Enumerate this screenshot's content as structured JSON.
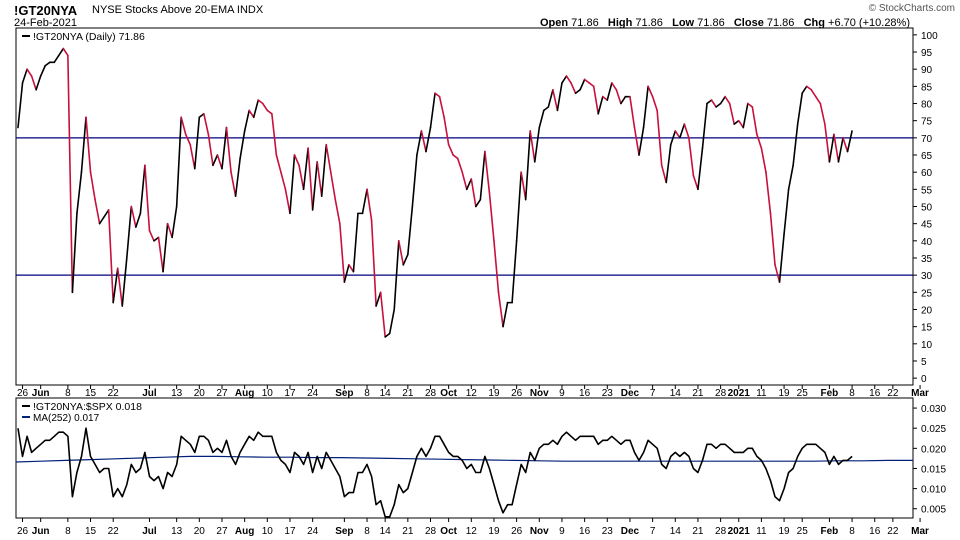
{
  "header": {
    "symbol": "!GT20NYA",
    "description": "NYSE Stocks Above 20-EMA",
    "exchange": "INDX",
    "date": "24-Feb-2021",
    "open_label": "Open",
    "open": "71.86",
    "high_label": "High",
    "high": "71.86",
    "low_label": "Low",
    "low": "71.86",
    "close_label": "Close",
    "close": "71.86",
    "chg_label": "Chg",
    "chg": "+6.70 (+10.28%)",
    "watermark": "© StockCharts.com"
  },
  "colors": {
    "up": "#000000",
    "down": "#c8103c",
    "hline": "#000080",
    "ma": "#00207a"
  },
  "chart_data": [
    {
      "type": "line",
      "legend": "!GT20NYA (Daily) 71.86",
      "ylim": [
        -2,
        102
      ],
      "yticks": [
        0,
        5,
        10,
        15,
        20,
        25,
        30,
        35,
        40,
        45,
        50,
        55,
        60,
        65,
        70,
        75,
        80,
        85,
        90,
        95,
        100
      ],
      "hlines": [
        70,
        30
      ],
      "x_ticks": [
        {
          "label": "26",
          "i": 1,
          "bold": false
        },
        {
          "label": "Jun",
          "i": 5,
          "bold": true
        },
        {
          "label": "8",
          "i": 11,
          "bold": false
        },
        {
          "label": "15",
          "i": 16,
          "bold": false
        },
        {
          "label": "22",
          "i": 21,
          "bold": false
        },
        {
          "label": "Jul",
          "i": 29,
          "bold": true
        },
        {
          "label": "13",
          "i": 35,
          "bold": false
        },
        {
          "label": "20",
          "i": 40,
          "bold": false
        },
        {
          "label": "27",
          "i": 45,
          "bold": false
        },
        {
          "label": "Aug",
          "i": 50,
          "bold": true
        },
        {
          "label": "10",
          "i": 55,
          "bold": false
        },
        {
          "label": "17",
          "i": 60,
          "bold": false
        },
        {
          "label": "24",
          "i": 65,
          "bold": false
        },
        {
          "label": "Sep",
          "i": 72,
          "bold": true
        },
        {
          "label": "8",
          "i": 77,
          "bold": false
        },
        {
          "label": "14",
          "i": 81,
          "bold": false
        },
        {
          "label": "21",
          "i": 86,
          "bold": false
        },
        {
          "label": "28",
          "i": 91,
          "bold": false
        },
        {
          "label": "Oct",
          "i": 95,
          "bold": true
        },
        {
          "label": "12",
          "i": 100,
          "bold": false
        },
        {
          "label": "19",
          "i": 105,
          "bold": false
        },
        {
          "label": "26",
          "i": 110,
          "bold": false
        },
        {
          "label": "Nov",
          "i": 115,
          "bold": true
        },
        {
          "label": "9",
          "i": 120,
          "bold": false
        },
        {
          "label": "16",
          "i": 125,
          "bold": false
        },
        {
          "label": "23",
          "i": 130,
          "bold": false
        },
        {
          "label": "Dec",
          "i": 135,
          "bold": true
        },
        {
          "label": "7",
          "i": 140,
          "bold": false
        },
        {
          "label": "14",
          "i": 145,
          "bold": false
        },
        {
          "label": "21",
          "i": 150,
          "bold": false
        },
        {
          "label": "28",
          "i": 155,
          "bold": false
        },
        {
          "label": "2021",
          "i": 159,
          "bold": true
        },
        {
          "label": "11",
          "i": 164,
          "bold": false
        },
        {
          "label": "19",
          "i": 169,
          "bold": false
        },
        {
          "label": "25",
          "i": 173,
          "bold": false
        },
        {
          "label": "Feb",
          "i": 179,
          "bold": true
        },
        {
          "label": "8",
          "i": 184,
          "bold": false
        },
        {
          "label": "16",
          "i": 189,
          "bold": false
        },
        {
          "label": "22",
          "i": 193,
          "bold": false
        },
        {
          "label": "Mar",
          "i": 199,
          "bold": true
        }
      ],
      "x_count": 198,
      "values": [
        73,
        86,
        90,
        88,
        84,
        88,
        91,
        92,
        92,
        94,
        96,
        94,
        25,
        48,
        60,
        76,
        60,
        52,
        45,
        47,
        49,
        22,
        32,
        21,
        35,
        50,
        44,
        48,
        62,
        43,
        40,
        41,
        31,
        45,
        41,
        50,
        76,
        71,
        68,
        61,
        76,
        77,
        71,
        62,
        65,
        61,
        73,
        60,
        53,
        64,
        72,
        78,
        76,
        81,
        80,
        78,
        77,
        65,
        60,
        55,
        48,
        65,
        62,
        55,
        67,
        49,
        63,
        53,
        68,
        60,
        52,
        45,
        28,
        33,
        31,
        48,
        48,
        55,
        46,
        21,
        25,
        12,
        13,
        20,
        40,
        33,
        36,
        50,
        65,
        72,
        66,
        73,
        83,
        82,
        76,
        68,
        65,
        64,
        60,
        55,
        58,
        50,
        52,
        66,
        54,
        40,
        25,
        15,
        22,
        22,
        40,
        60,
        52,
        72,
        63,
        73,
        78,
        79,
        84,
        78,
        86,
        88,
        86,
        83,
        84,
        87,
        86,
        85,
        77,
        82,
        81,
        86,
        84,
        80,
        82,
        82,
        73,
        65,
        73,
        85,
        82,
        78,
        62,
        57,
        68,
        72,
        70,
        74,
        70,
        59,
        55,
        67,
        80,
        81,
        79,
        80,
        82,
        80,
        74,
        75,
        73,
        80,
        79,
        71,
        67,
        60,
        48,
        33,
        28,
        42,
        55,
        62,
        74,
        83,
        85,
        84,
        82,
        80,
        74,
        63,
        71,
        63,
        70,
        66,
        72
      ],
      "colors_per_segment": "black when rising, crimson when falling"
    },
    {
      "type": "line",
      "legend": "!GT20NYA:$SPX 0.018",
      "legend2": "MA(252) 0.017",
      "ylim": [
        0.0027,
        0.0325
      ],
      "yticks": [
        "0.005",
        "0.010",
        "0.015",
        "0.020",
        "0.025",
        "0.030"
      ],
      "ratio": [
        0.025,
        0.018,
        0.023,
        0.019,
        0.02,
        0.021,
        0.022,
        0.022,
        0.023,
        0.024,
        0.024,
        0.023,
        0.008,
        0.014,
        0.018,
        0.025,
        0.018,
        0.016,
        0.014,
        0.015,
        0.015,
        0.008,
        0.01,
        0.008,
        0.011,
        0.016,
        0.014,
        0.015,
        0.019,
        0.013,
        0.012,
        0.013,
        0.01,
        0.014,
        0.013,
        0.016,
        0.023,
        0.022,
        0.021,
        0.019,
        0.023,
        0.023,
        0.022,
        0.019,
        0.02,
        0.019,
        0.022,
        0.018,
        0.016,
        0.019,
        0.021,
        0.023,
        0.022,
        0.024,
        0.023,
        0.023,
        0.023,
        0.019,
        0.017,
        0.016,
        0.014,
        0.019,
        0.018,
        0.016,
        0.019,
        0.014,
        0.018,
        0.015,
        0.019,
        0.017,
        0.015,
        0.013,
        0.008,
        0.009,
        0.009,
        0.014,
        0.014,
        0.016,
        0.013,
        0.006,
        0.007,
        0.003,
        0.003,
        0.006,
        0.011,
        0.009,
        0.01,
        0.014,
        0.018,
        0.02,
        0.018,
        0.02,
        0.023,
        0.023,
        0.021,
        0.019,
        0.018,
        0.018,
        0.017,
        0.015,
        0.016,
        0.014,
        0.014,
        0.018,
        0.015,
        0.011,
        0.007,
        0.004,
        0.006,
        0.006,
        0.011,
        0.016,
        0.014,
        0.019,
        0.017,
        0.02,
        0.021,
        0.021,
        0.022,
        0.021,
        0.023,
        0.024,
        0.023,
        0.022,
        0.023,
        0.023,
        0.023,
        0.023,
        0.021,
        0.022,
        0.022,
        0.023,
        0.022,
        0.021,
        0.022,
        0.022,
        0.019,
        0.017,
        0.019,
        0.022,
        0.021,
        0.02,
        0.016,
        0.015,
        0.018,
        0.019,
        0.018,
        0.019,
        0.018,
        0.015,
        0.014,
        0.017,
        0.021,
        0.021,
        0.02,
        0.021,
        0.021,
        0.02,
        0.019,
        0.019,
        0.019,
        0.02,
        0.02,
        0.018,
        0.017,
        0.015,
        0.012,
        0.008,
        0.007,
        0.01,
        0.014,
        0.015,
        0.018,
        0.02,
        0.021,
        0.021,
        0.021,
        0.02,
        0.019,
        0.016,
        0.018,
        0.016,
        0.017,
        0.017,
        0.018
      ],
      "ma": [
        0.0166,
        0.0168,
        0.017,
        0.0172,
        0.0174,
        0.0176,
        0.0178,
        0.018,
        0.018,
        0.0179,
        0.0178,
        0.0178,
        0.0177,
        0.0177,
        0.0176,
        0.0175,
        0.0174,
        0.0173,
        0.0172,
        0.0171,
        0.017,
        0.0169,
        0.0168,
        0.0168,
        0.0168,
        0.0168,
        0.0168,
        0.0168,
        0.0168,
        0.0168,
        0.0168,
        0.0168,
        0.0168,
        0.0169,
        0.0169,
        0.017,
        0.017
      ]
    }
  ]
}
